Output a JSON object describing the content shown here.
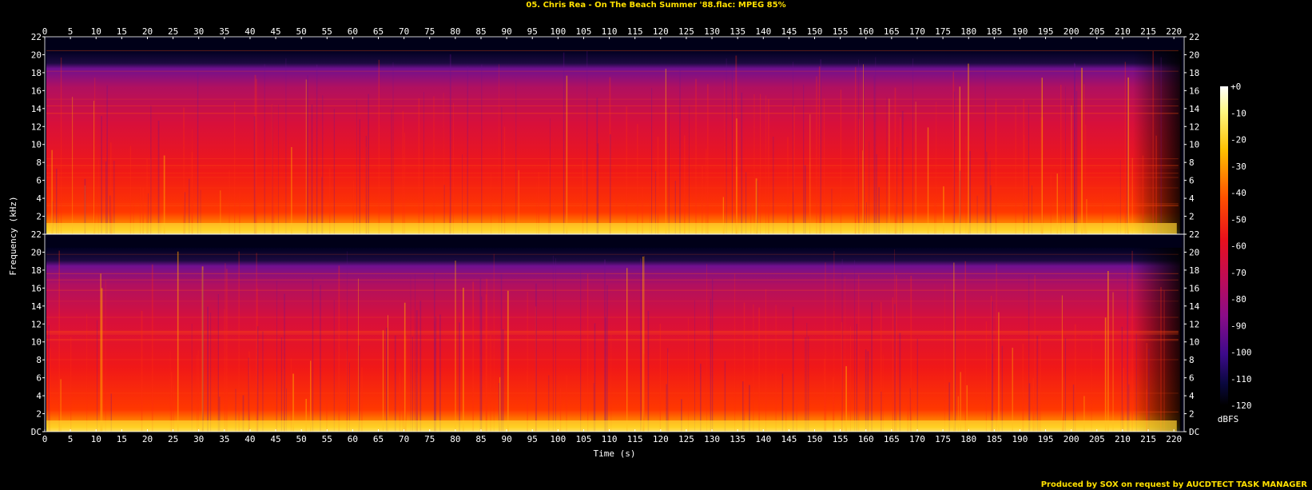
{
  "title": "05. Chris Rea - On The Beach Summer '88.flac: MPEG 85%",
  "footer": "Produced by SOX on request by AUCDTECT TASK MANAGER",
  "colors": {
    "background": "#000000",
    "title": "#ffe000",
    "axis": "#ffffff"
  },
  "chart_data": {
    "type": "heatmap",
    "xlabel": "Time (s)",
    "ylabel": "Frequency (kHz)",
    "xlim": [
      0,
      222
    ],
    "ylim": [
      0,
      22
    ],
    "x_ticks": [
      "0",
      "5",
      "10",
      "15",
      "20",
      "25",
      "30",
      "35",
      "40",
      "45",
      "50",
      "55",
      "60",
      "65",
      "70",
      "75",
      "80",
      "85",
      "90",
      "95",
      "100",
      "105",
      "110",
      "115",
      "120",
      "125",
      "130",
      "135",
      "140",
      "145",
      "150",
      "155",
      "160",
      "165",
      "170",
      "175",
      "180",
      "185",
      "190",
      "195",
      "200",
      "205",
      "210",
      "215",
      "220"
    ],
    "y_ticks": [
      "DC",
      "2",
      "4",
      "6",
      "8",
      "10",
      "12",
      "14",
      "16",
      "18",
      "20",
      "22"
    ],
    "channels": 2,
    "frequency_cutoff_khz": 20.5,
    "duration_s": 221.5,
    "colorbar": {
      "label": "dBFS",
      "range": [
        -120,
        0
      ],
      "ticks": [
        "+0",
        "-10",
        "-20",
        "-30",
        "-40",
        "-50",
        "-60",
        "-70",
        "-80",
        "-90",
        "-100",
        "-110",
        "-120"
      ]
    }
  }
}
